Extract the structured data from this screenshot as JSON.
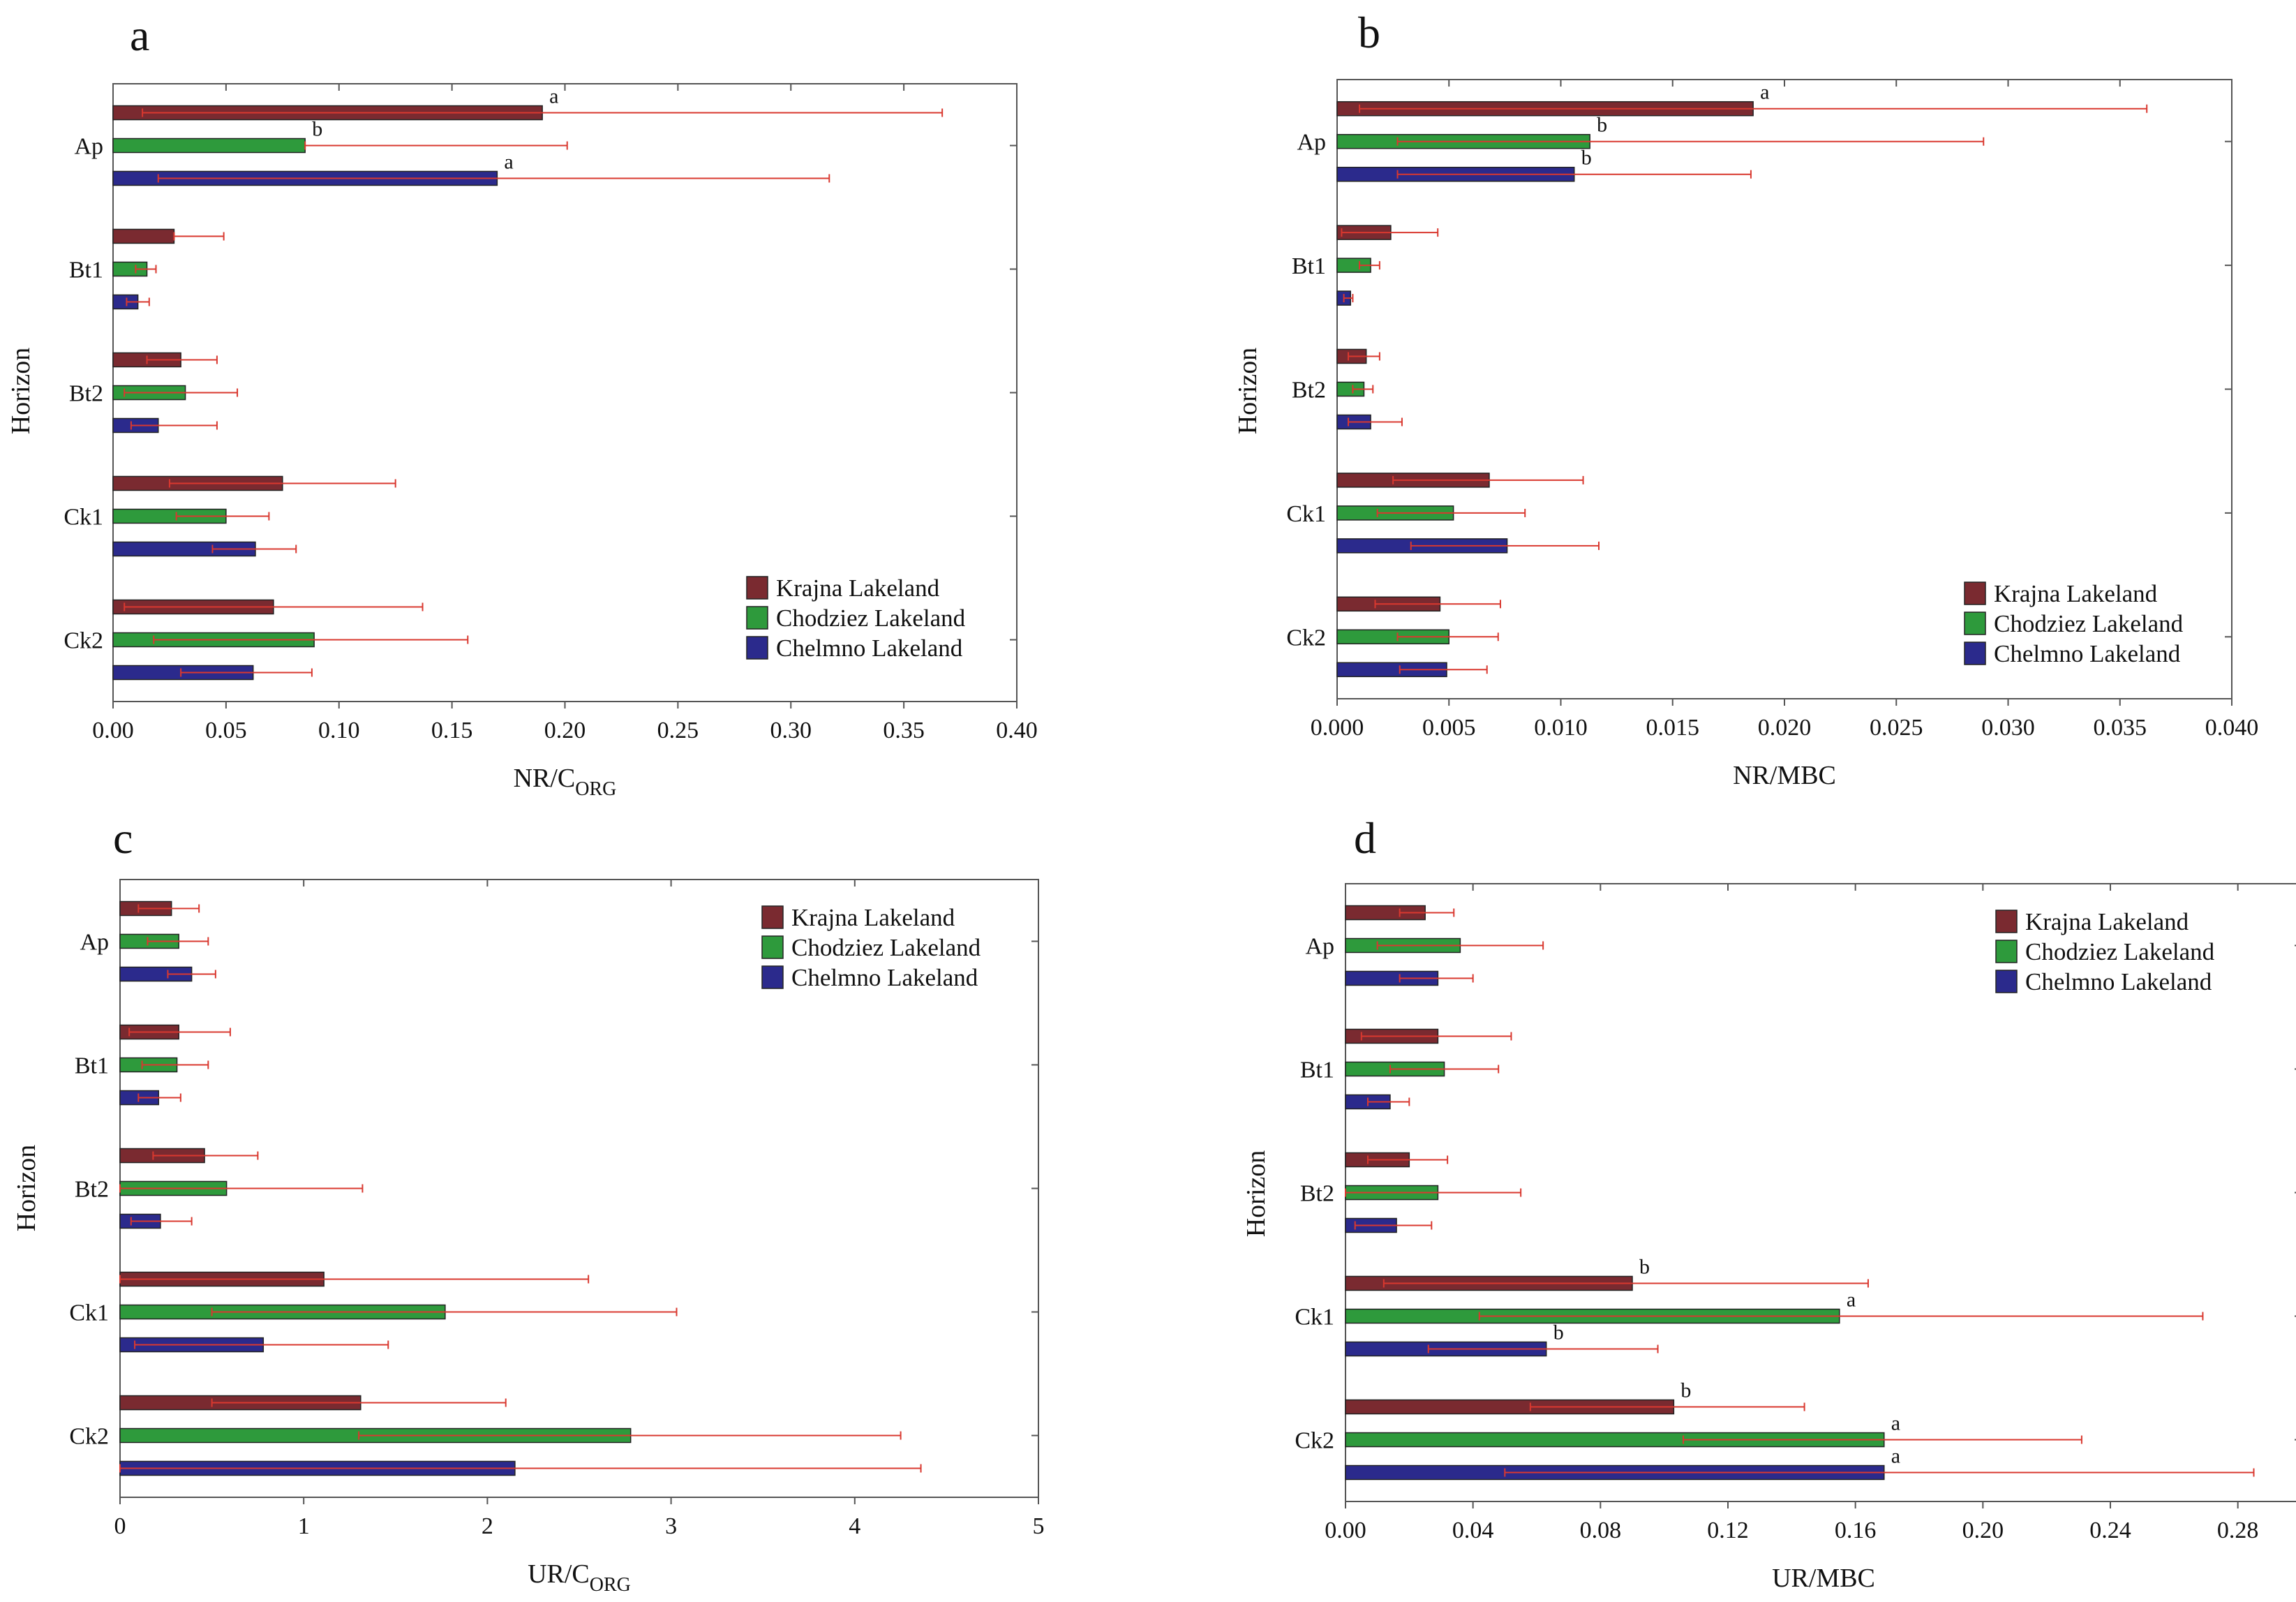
{
  "figure_labels": [
    "a",
    "b",
    "c",
    "d"
  ],
  "legend": [
    {
      "name": "Krajna Lakeland",
      "color": "#7a2a30"
    },
    {
      "name": "Chodziez Lakeland",
      "color": "#2e9a3c"
    },
    {
      "name": "Chelmno Lakeland",
      "color": "#2b2a8c"
    }
  ],
  "error_bar_color": "#d9382f",
  "chart_data": [
    {
      "type": "bar",
      "orientation": "horizontal",
      "panel": "a",
      "ylabel": "Horizon",
      "xlabel": "NR/C",
      "xlabel_sub": "ORG",
      "categories": [
        "Ap",
        "Bt1",
        "Bt2",
        "Ck1",
        "Ck2"
      ],
      "xlim": [
        0,
        0.4
      ],
      "xticks": [
        "0.00",
        "0.05",
        "0.10",
        "0.15",
        "0.20",
        "0.25",
        "0.30",
        "0.35",
        "0.40"
      ],
      "legend_position": "bottom-right",
      "series": [
        {
          "name": "Krajna Lakeland",
          "values": [
            0.19,
            0.027,
            0.03,
            0.075,
            0.071
          ],
          "err_low": [
            0.013,
            0.027,
            0.015,
            0.025,
            0.005
          ],
          "err_high": [
            0.367,
            0.049,
            0.046,
            0.125,
            0.137
          ],
          "labels": [
            "a",
            "",
            "",
            "",
            ""
          ]
        },
        {
          "name": "Chodziez Lakeland",
          "values": [
            0.085,
            0.015,
            0.032,
            0.05,
            0.089
          ],
          "err_low": [
            0.085,
            0.01,
            0.005,
            0.028,
            0.018
          ],
          "err_high": [
            0.201,
            0.019,
            0.055,
            0.069,
            0.157
          ],
          "labels": [
            "b",
            "",
            "",
            "",
            ""
          ]
        },
        {
          "name": "Chelmno Lakeland",
          "values": [
            0.17,
            0.011,
            0.02,
            0.063,
            0.062
          ],
          "err_low": [
            0.02,
            0.006,
            0.008,
            0.044,
            0.03
          ],
          "err_high": [
            0.317,
            0.016,
            0.046,
            0.081,
            0.088
          ],
          "labels": [
            "a",
            "",
            "",
            "",
            ""
          ]
        }
      ]
    },
    {
      "type": "bar",
      "orientation": "horizontal",
      "panel": "b",
      "ylabel": "Horizon",
      "xlabel": "NR/MBC",
      "xlabel_sub": "",
      "categories": [
        "Ap",
        "Bt1",
        "Bt2",
        "Ck1",
        "Ck2"
      ],
      "xlim": [
        0,
        0.04
      ],
      "xticks": [
        "0.000",
        "0.005",
        "0.010",
        "0.015",
        "0.020",
        "0.025",
        "0.030",
        "0.035",
        "0.040"
      ],
      "legend_position": "bottom-right",
      "series": [
        {
          "name": "Krajna Lakeland",
          "values": [
            0.0186,
            0.0024,
            0.0013,
            0.0068,
            0.0046
          ],
          "err_low": [
            0.001,
            0.0002,
            0.0005,
            0.0025,
            0.0017
          ],
          "err_high": [
            0.0362,
            0.0045,
            0.0019,
            0.011,
            0.0073
          ],
          "labels": [
            "a",
            "",
            "",
            "",
            ""
          ]
        },
        {
          "name": "Chodziez Lakeland",
          "values": [
            0.0113,
            0.0015,
            0.0012,
            0.0052,
            0.005
          ],
          "err_low": [
            0.0027,
            0.001,
            0.0007,
            0.0018,
            0.0027
          ],
          "err_high": [
            0.0289,
            0.0019,
            0.0016,
            0.0084,
            0.0072
          ],
          "labels": [
            "b",
            "",
            "",
            "",
            ""
          ]
        },
        {
          "name": "Chelmno Lakeland",
          "values": [
            0.0106,
            0.0006,
            0.0015,
            0.0076,
            0.0049
          ],
          "err_low": [
            0.0027,
            0.0003,
            0.0005,
            0.0033,
            0.0028
          ],
          "err_high": [
            0.0185,
            0.0007,
            0.0029,
            0.0117,
            0.0067
          ],
          "labels": [
            "b",
            "",
            "",
            "",
            ""
          ]
        }
      ]
    },
    {
      "type": "bar",
      "orientation": "horizontal",
      "panel": "c",
      "ylabel": "Horizon",
      "xlabel": "UR/C",
      "xlabel_sub": "ORG",
      "categories": [
        "Ap",
        "Bt1",
        "Bt2",
        "Ck1",
        "Ck2"
      ],
      "xlim": [
        0,
        5
      ],
      "xticks": [
        "0",
        "1",
        "2",
        "3",
        "4",
        "5"
      ],
      "legend_position": "top-right",
      "series": [
        {
          "name": "Krajna Lakeland",
          "values": [
            0.28,
            0.32,
            0.46,
            1.11,
            1.31
          ],
          "err_low": [
            0.1,
            0.05,
            0.18,
            0.0,
            0.5
          ],
          "err_high": [
            0.43,
            0.6,
            0.75,
            2.55,
            2.1
          ],
          "labels": [
            "",
            "",
            "",
            "",
            ""
          ]
        },
        {
          "name": "Chodziez Lakeland",
          "values": [
            0.32,
            0.31,
            0.58,
            1.77,
            2.78
          ],
          "err_low": [
            0.15,
            0.12,
            0.0,
            0.5,
            1.3
          ],
          "err_high": [
            0.48,
            0.48,
            1.32,
            3.03,
            4.25
          ],
          "labels": [
            "",
            "",
            "",
            "",
            ""
          ]
        },
        {
          "name": "Chelmno Lakeland",
          "values": [
            0.39,
            0.21,
            0.22,
            0.78,
            2.15
          ],
          "err_low": [
            0.26,
            0.1,
            0.06,
            0.08,
            0.0
          ],
          "err_high": [
            0.52,
            0.33,
            0.39,
            1.46,
            4.36
          ],
          "labels": [
            "",
            "",
            "",
            "",
            ""
          ]
        }
      ]
    },
    {
      "type": "bar",
      "orientation": "horizontal",
      "panel": "d",
      "ylabel": "Horizon",
      "xlabel": "UR/MBC",
      "xlabel_sub": "",
      "categories": [
        "Ap",
        "Bt1",
        "Bt2",
        "Ck1",
        "Ck2"
      ],
      "xlim": [
        0,
        0.3
      ],
      "xticks": [
        "0.00",
        "0.04",
        "0.08",
        "0.12",
        "0.16",
        "0.20",
        "0.24",
        "0.28"
      ],
      "legend_position": "top-right",
      "series": [
        {
          "name": "Krajna Lakeland",
          "values": [
            0.025,
            0.029,
            0.02,
            0.09,
            0.103
          ],
          "err_low": [
            0.017,
            0.005,
            0.007,
            0.012,
            0.058
          ],
          "err_high": [
            0.034,
            0.052,
            0.032,
            0.164,
            0.144
          ],
          "labels": [
            "",
            "",
            "",
            "b",
            "b"
          ]
        },
        {
          "name": "Chodziez Lakeland",
          "values": [
            0.036,
            0.031,
            0.029,
            0.155,
            0.169
          ],
          "err_low": [
            0.01,
            0.014,
            0.0,
            0.042,
            0.106
          ],
          "err_high": [
            0.062,
            0.048,
            0.055,
            0.269,
            0.231
          ],
          "labels": [
            "",
            "",
            "",
            "a",
            "a"
          ]
        },
        {
          "name": "Chelmno Lakeland",
          "values": [
            0.029,
            0.014,
            0.016,
            0.063,
            0.169
          ],
          "err_low": [
            0.017,
            0.007,
            0.003,
            0.026,
            0.05
          ],
          "err_high": [
            0.04,
            0.02,
            0.027,
            0.098,
            0.285
          ],
          "labels": [
            "",
            "",
            "",
            "b",
            "a"
          ]
        }
      ]
    }
  ]
}
